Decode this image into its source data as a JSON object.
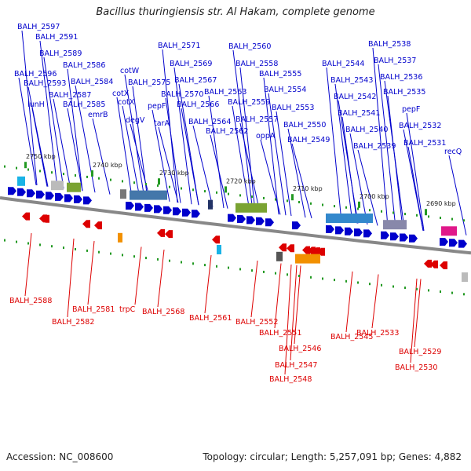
{
  "title": "Bacillus thuringiensis str. Al Hakam, complete genome",
  "footer": {
    "accession": "Accession: NC_008600",
    "summary": "Topology: circular; Length: 5,257,091 bp; Genes: 4,882"
  },
  "colors": {
    "forward": "#0000cc",
    "reverse": "#dd0000",
    "backbone": "#888888",
    "tick": "#229922"
  },
  "kbp_labels": [
    "2750 kbp",
    "2740 kbp",
    "2730 kbp",
    "2720 kbp",
    "2710 kbp",
    "2700 kbp",
    "2690 kbp"
  ],
  "forward_genes": [
    "BALH_2597",
    "BALH_2591",
    "BALH_2589",
    "BALH_2586",
    "BALH_2596",
    "BALH_2593",
    "lunH",
    "BALH_2587",
    "BALH_2584",
    "BALH_2585",
    "emrB",
    "cotW",
    "cotX",
    "cotX",
    "degV",
    "BALH_2575",
    "pepF",
    "tarA",
    "BALH_2571",
    "BALH_2569",
    "BALH_2567",
    "BALH_2570",
    "BALH_2566",
    "BALH_2564",
    "BALH_2563",
    "BALH_2562",
    "BALH_2560",
    "BALH_2558",
    "BALH_2559",
    "BALH_2557",
    "BALH_2555",
    "BALH_2554",
    "oppA",
    "BALH_2553",
    "BALH_2550",
    "BALH_2549",
    "BALH_2544",
    "BALH_2543",
    "BALH_2542",
    "BALH_2541",
    "BALH_2540",
    "BALH_2539",
    "BALH_2538",
    "BALH_2537",
    "BALH_2536",
    "BALH_2535",
    "pepF",
    "BALH_2532",
    "BALH_2531",
    "recQ"
  ],
  "reverse_genes": [
    "BALH_2588",
    "BALH_2581",
    "BALH_2582",
    "trpC",
    "BALH_2568",
    "BALH_2561",
    "BALH_2552",
    "BALH_2551",
    "BALH_2546",
    "BALH_2547",
    "BALH_2548",
    "BALH_2545",
    "BALH_2533",
    "BALH_2529",
    "BALH_2530"
  ]
}
